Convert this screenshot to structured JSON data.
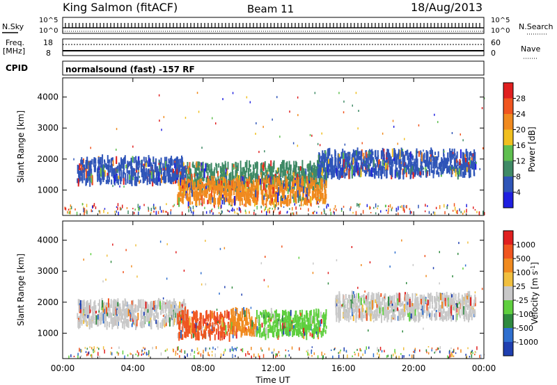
{
  "header": {
    "station": "King Salmon (fitACF)",
    "beam": "Beam 11",
    "date": "18/Aug/2013"
  },
  "small_panels": {
    "nsky_label": "N.Sky",
    "nsearch_label": "N.Search",
    "freq_label_1": "Freq.",
    "freq_label_2": "[MHz]",
    "nave_label": "Nave",
    "cpid_label": "CPID",
    "cpid_value": "normalsound (fast) -157 RF",
    "nsky_ticks": [
      "10^5",
      "10^0"
    ],
    "nsearch_ticks": [
      "10^5",
      "10^0"
    ],
    "freq_ticks": [
      "18",
      "8"
    ],
    "nave_ticks": [
      "60",
      "0"
    ]
  },
  "chart_data": [
    {
      "type": "heatmap",
      "title": "",
      "xlabel": "",
      "ylabel": "Slant Range [km]",
      "x_ticks": [
        "00:00",
        "04:00",
        "08:00",
        "12:00",
        "16:00",
        "20:00",
        "00:00"
      ],
      "y_ticks": [
        "1000",
        "2000",
        "3000",
        "4000"
      ],
      "xlim_hours": [
        0,
        24
      ],
      "ylim_km": [
        180,
        4620
      ],
      "colorbar": {
        "label": "Power [dB]",
        "tick_labels": [
          "4",
          "8",
          "12",
          "16",
          "20",
          "24",
          "28"
        ],
        "colors": [
          "#1f1fe0",
          "#2f55b8",
          "#3f8a66",
          "#5fbf4f",
          "#f0bf1f",
          "#f08a1f",
          "#f0551f",
          "#e01f1f"
        ]
      },
      "echo_bands": [
        {
          "t_start": 0.8,
          "t_end": 7.0,
          "range_center": 1620,
          "level": "#2f55b8"
        },
        {
          "t_start": 7.0,
          "t_end": 15.0,
          "range_center": 1450,
          "level": "#3f8a66"
        },
        {
          "t_start": 6.5,
          "t_end": 15.0,
          "range_center": 950,
          "level": "#f08a1f"
        },
        {
          "t_start": 14.5,
          "t_end": 23.5,
          "range_center": 1850,
          "level": "#2f55b8"
        }
      ]
    },
    {
      "type": "heatmap",
      "title": "",
      "xlabel": "Time UT",
      "ylabel": "Slant Range [km]",
      "x_ticks": [
        "00:00",
        "04:00",
        "08:00",
        "12:00",
        "16:00",
        "20:00",
        "00:00"
      ],
      "y_ticks": [
        "1000",
        "2000",
        "3000",
        "4000"
      ],
      "xlim_hours": [
        0,
        24
      ],
      "ylim_km": [
        180,
        4620
      ],
      "colorbar": {
        "label": "Velocity [m s",
        "label_exponent": "-1",
        "label_close": "]",
        "tick_labels": [
          "1000",
          "500",
          "100",
          "25",
          "-25",
          "-100",
          "-500",
          "-1000"
        ],
        "colors": [
          "#1f3fb0",
          "#2f6fcf",
          "#2f8a3f",
          "#5fcf3f",
          "#c8c8c8",
          "#f0bf3f",
          "#f08a1f",
          "#f0551f",
          "#e01f1f"
        ]
      },
      "echo_bands": [
        {
          "t_start": 0.8,
          "t_end": 7.0,
          "range_center": 1620,
          "level": "#c8c8c8"
        },
        {
          "t_start": 6.5,
          "t_end": 9.5,
          "range_center": 1250,
          "level": "#f0551f"
        },
        {
          "t_start": 9.5,
          "t_end": 11.0,
          "range_center": 1350,
          "level": "#f08a1f"
        },
        {
          "t_start": 11.0,
          "t_end": 15.0,
          "range_center": 1300,
          "level": "#5fcf3f"
        },
        {
          "t_start": 15.5,
          "t_end": 23.5,
          "range_center": 1850,
          "level": "#c8c8c8"
        }
      ]
    }
  ]
}
